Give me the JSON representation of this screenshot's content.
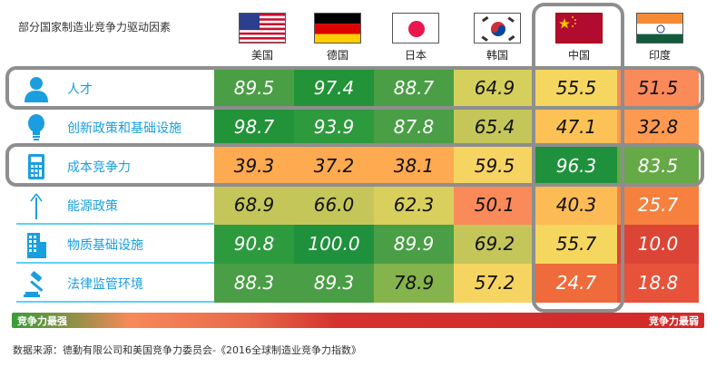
{
  "title": "部分国家制造业竞争力驱动因素",
  "countries": [
    "美国",
    "德国",
    "日本",
    "韩国",
    "中国",
    "印度"
  ],
  "factors": [
    {
      "label": "人才",
      "icon": "person-icon"
    },
    {
      "label": "创新政策和基础设施",
      "icon": "lightbulb-icon"
    },
    {
      "label": "成本竞争力",
      "icon": "calculator-icon"
    },
    {
      "label": "能源政策",
      "icon": "wind-turbine-icon"
    },
    {
      "label": "物质基础设施",
      "icon": "building-icon"
    },
    {
      "label": "法律监管环境",
      "icon": "gavel-icon"
    }
  ],
  "cells": [
    [
      {
        "v": "89.5",
        "c": "#4a9e45",
        "t": "white"
      },
      {
        "v": "97.4",
        "c": "#229338",
        "t": "white"
      },
      {
        "v": "88.7",
        "c": "#4a9e45",
        "t": "white"
      },
      {
        "v": "64.9",
        "c": "#d5cf5c",
        "t": "black"
      },
      {
        "v": "55.5",
        "c": "#f5d65f",
        "t": "black"
      },
      {
        "v": "51.5",
        "c": "#fb8a5a",
        "t": "black"
      }
    ],
    [
      {
        "v": "98.7",
        "c": "#229338",
        "t": "white"
      },
      {
        "v": "93.9",
        "c": "#2e9a3e",
        "t": "white"
      },
      {
        "v": "87.8",
        "c": "#4a9e45",
        "t": "white"
      },
      {
        "v": "65.4",
        "c": "#c4c65a",
        "t": "black"
      },
      {
        "v": "47.1",
        "c": "#fcc256",
        "t": "black"
      },
      {
        "v": "32.8",
        "c": "#fd9a50",
        "t": "black"
      }
    ],
    [
      {
        "v": "39.3",
        "c": "#fdaa50",
        "t": "black"
      },
      {
        "v": "37.2",
        "c": "#fdaa50",
        "t": "black"
      },
      {
        "v": "38.1",
        "c": "#fdaa50",
        "t": "black"
      },
      {
        "v": "59.5",
        "c": "#f6d462",
        "t": "black"
      },
      {
        "v": "96.3",
        "c": "#1f913c",
        "t": "white"
      },
      {
        "v": "83.5",
        "c": "#66a947",
        "t": "white"
      }
    ],
    [
      {
        "v": "68.9",
        "c": "#c4c65a",
        "t": "black"
      },
      {
        "v": "66.0",
        "c": "#c4c65a",
        "t": "black"
      },
      {
        "v": "62.3",
        "c": "#d9cf5c",
        "t": "black"
      },
      {
        "v": "50.1",
        "c": "#fb8a5a",
        "t": "black"
      },
      {
        "v": "40.3",
        "c": "#fcbb55",
        "t": "black"
      },
      {
        "v": "25.7",
        "c": "#f6813e",
        "t": "white"
      }
    ],
    [
      {
        "v": "90.8",
        "c": "#2e9a3e",
        "t": "white"
      },
      {
        "v": "100.0",
        "c": "#1f913c",
        "t": "white"
      },
      {
        "v": "89.9",
        "c": "#4a9e45",
        "t": "white"
      },
      {
        "v": "69.2",
        "c": "#c4c65a",
        "t": "black"
      },
      {
        "v": "55.7",
        "c": "#f5d65f",
        "t": "black"
      },
      {
        "v": "10.0",
        "c": "#dc4535",
        "t": "white"
      }
    ],
    [
      {
        "v": "88.3",
        "c": "#4a9e45",
        "t": "white"
      },
      {
        "v": "89.3",
        "c": "#4a9e45",
        "t": "white"
      },
      {
        "v": "78.9",
        "c": "#85b34c",
        "t": "black"
      },
      {
        "v": "57.2",
        "c": "#f6d462",
        "t": "black"
      },
      {
        "v": "24.7",
        "c": "#ef6b3c",
        "t": "white"
      },
      {
        "v": "18.8",
        "c": "#e6533a",
        "t": "white"
      }
    ]
  ],
  "legend": {
    "left": "竞争力最强",
    "right": "竞争力最弱"
  },
  "source": "数据来源：德勤有限公司和美国竞争力委员会-《2016全球制造业竞争力指数》",
  "chart_data": {
    "type": "heatmap",
    "title": "部分国家制造业竞争力驱动因素",
    "x": [
      "美国",
      "德国",
      "日本",
      "韩国",
      "中国",
      "印度"
    ],
    "y": [
      "人才",
      "创新政策和基础设施",
      "成本竞争力",
      "能源政策",
      "物质基础设施",
      "法律监管环境"
    ],
    "values": [
      [
        89.5,
        97.4,
        88.7,
        64.9,
        55.5,
        51.5
      ],
      [
        98.7,
        93.9,
        87.8,
        65.4,
        47.1,
        32.8
      ],
      [
        39.3,
        37.2,
        38.1,
        59.5,
        96.3,
        83.5
      ],
      [
        68.9,
        66.0,
        62.3,
        50.1,
        40.3,
        25.7
      ],
      [
        90.8,
        100.0,
        89.9,
        69.2,
        55.7,
        10.0
      ],
      [
        88.3,
        89.3,
        78.9,
        57.2,
        24.7,
        18.8
      ]
    ],
    "colorscale": {
      "min_label": "竞争力最弱",
      "max_label": "竞争力最强",
      "low_color": "#d12a2a",
      "high_color": "#1f913c"
    },
    "highlights": {
      "rows": [
        "人才",
        "成本竞争力"
      ],
      "columns": [
        "中国"
      ]
    },
    "source": "数据来源：德勤有限公司和美国竞争力委员会-《2016全球制造业竞争力指数》"
  }
}
